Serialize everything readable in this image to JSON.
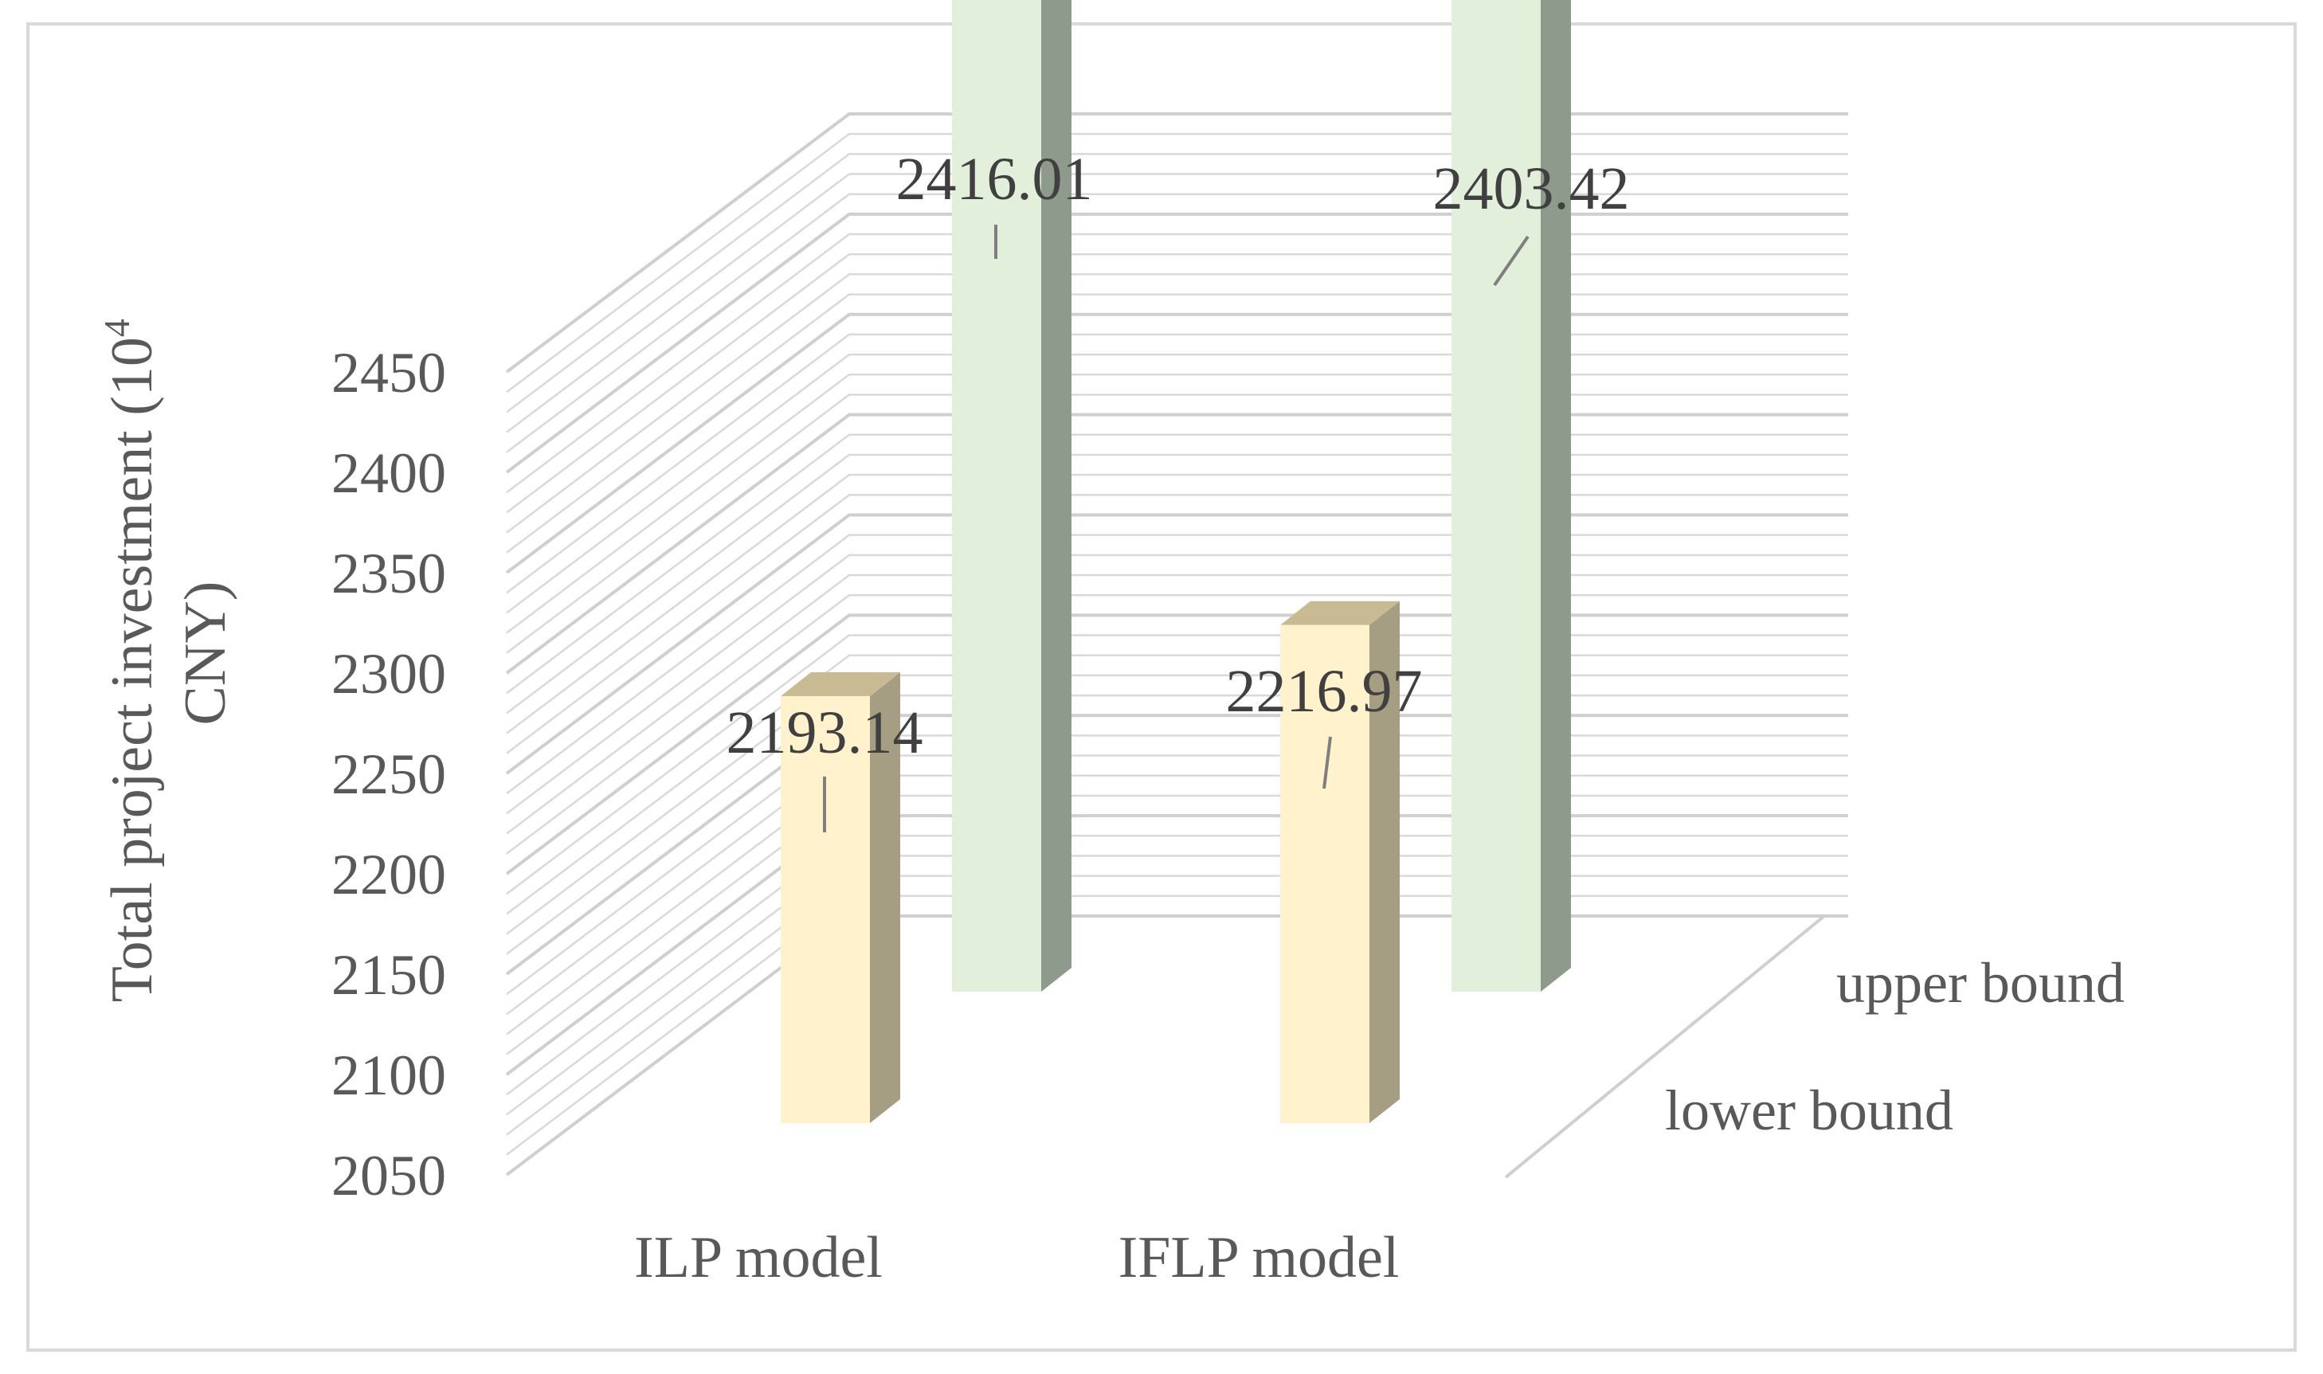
{
  "chart_data": {
    "type": "bar",
    "style": "3d-column",
    "categories": [
      "ILP model",
      "IFLP model"
    ],
    "series": [
      {
        "name": "lower bound",
        "values": [
          2193.14,
          2216.97
        ],
        "color_front": "#fff2cc",
        "color_side": "#a69e82",
        "color_top": "#c8bb94"
      },
      {
        "name": "upper bound",
        "values": [
          2416.01,
          2403.42
        ],
        "color_front": "#e2efda",
        "color_side": "#8e9a8c",
        "color_top": "#a9b9a4"
      }
    ],
    "data_labels": [
      "2193.14",
      "2416.01",
      "2216.97",
      "2403.42"
    ],
    "ylabel": "Total project investment (10⁴ CNY)",
    "ylabel_lines": [
      "Total project investment (10",
      "4",
      "CNY)"
    ],
    "ylim": [
      2050,
      2450
    ],
    "yticks": [
      "2050",
      "2100",
      "2150",
      "2200",
      "2250",
      "2300",
      "2350",
      "2400",
      "2450"
    ],
    "ytick_values": [
      2050,
      2100,
      2150,
      2200,
      2250,
      2300,
      2350,
      2400,
      2450
    ],
    "grid": true,
    "colors": {
      "grid": "#d9d9d9",
      "text": "#595959",
      "label": "#404040"
    }
  }
}
